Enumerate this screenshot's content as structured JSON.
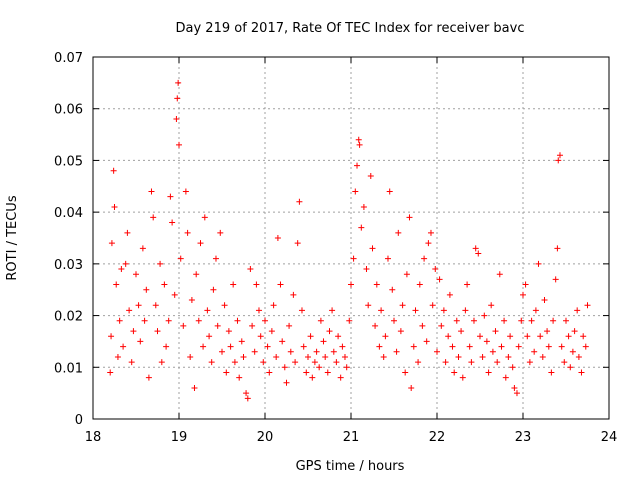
{
  "chart_data": {
    "type": "scatter",
    "title": "Day 219 of 2017, Rate Of TEC Index for receiver bavc",
    "xlabel": "GPS time / hours",
    "ylabel": "ROTI / TECUs",
    "xlim": [
      18,
      24
    ],
    "ylim": [
      0,
      0.07
    ],
    "x_ticks": [
      "18",
      "19",
      "20",
      "21",
      "22",
      "23",
      "24"
    ],
    "y_ticks": [
      "0",
      "0.01",
      "0.02",
      "0.03",
      "0.04",
      "0.05",
      "0.06",
      "0.07"
    ],
    "grid": true,
    "marker": "+",
    "color": "#ff0000",
    "series": [
      {
        "points": [
          [
            18.2,
            0.009
          ],
          [
            18.21,
            0.016
          ],
          [
            18.22,
            0.034
          ],
          [
            18.24,
            0.048
          ],
          [
            18.25,
            0.041
          ],
          [
            18.27,
            0.026
          ],
          [
            18.29,
            0.012
          ],
          [
            18.31,
            0.019
          ],
          [
            18.33,
            0.029
          ],
          [
            18.35,
            0.014
          ],
          [
            18.38,
            0.03
          ],
          [
            18.4,
            0.036
          ],
          [
            18.42,
            0.021
          ],
          [
            18.45,
            0.011
          ],
          [
            18.47,
            0.017
          ],
          [
            18.5,
            0.028
          ],
          [
            18.53,
            0.022
          ],
          [
            18.55,
            0.015
          ],
          [
            18.58,
            0.033
          ],
          [
            18.6,
            0.019
          ],
          [
            18.62,
            0.025
          ],
          [
            18.65,
            0.008
          ],
          [
            18.68,
            0.044
          ],
          [
            18.7,
            0.039
          ],
          [
            18.73,
            0.022
          ],
          [
            18.75,
            0.017
          ],
          [
            18.78,
            0.03
          ],
          [
            18.8,
            0.011
          ],
          [
            18.83,
            0.026
          ],
          [
            18.85,
            0.014
          ],
          [
            18.88,
            0.019
          ],
          [
            18.9,
            0.043
          ],
          [
            18.92,
            0.038
          ],
          [
            18.95,
            0.024
          ],
          [
            18.97,
            0.058
          ],
          [
            18.98,
            0.062
          ],
          [
            18.99,
            0.065
          ],
          [
            19.0,
            0.053
          ],
          [
            19.02,
            0.031
          ],
          [
            19.05,
            0.018
          ],
          [
            19.08,
            0.044
          ],
          [
            19.1,
            0.036
          ],
          [
            19.13,
            0.012
          ],
          [
            19.15,
            0.023
          ],
          [
            19.18,
            0.006
          ],
          [
            19.2,
            0.028
          ],
          [
            19.23,
            0.019
          ],
          [
            19.25,
            0.034
          ],
          [
            19.28,
            0.014
          ],
          [
            19.3,
            0.039
          ],
          [
            19.33,
            0.021
          ],
          [
            19.35,
            0.016
          ],
          [
            19.38,
            0.011
          ],
          [
            19.4,
            0.025
          ],
          [
            19.43,
            0.031
          ],
          [
            19.45,
            0.018
          ],
          [
            19.48,
            0.036
          ],
          [
            19.5,
            0.013
          ],
          [
            19.53,
            0.022
          ],
          [
            19.55,
            0.009
          ],
          [
            19.58,
            0.017
          ],
          [
            19.6,
            0.014
          ],
          [
            19.63,
            0.026
          ],
          [
            19.65,
            0.011
          ],
          [
            19.68,
            0.019
          ],
          [
            19.7,
            0.008
          ],
          [
            19.73,
            0.015
          ],
          [
            19.75,
            0.012
          ],
          [
            19.78,
            0.005
          ],
          [
            19.8,
            0.004
          ],
          [
            19.83,
            0.029
          ],
          [
            19.85,
            0.018
          ],
          [
            19.88,
            0.013
          ],
          [
            19.9,
            0.026
          ],
          [
            19.93,
            0.021
          ],
          [
            19.95,
            0.016
          ],
          [
            19.98,
            0.011
          ],
          [
            20.0,
            0.019
          ],
          [
            20.03,
            0.014
          ],
          [
            20.05,
            0.009
          ],
          [
            20.08,
            0.017
          ],
          [
            20.1,
            0.022
          ],
          [
            20.13,
            0.012
          ],
          [
            20.15,
            0.035
          ],
          [
            20.18,
            0.026
          ],
          [
            20.2,
            0.015
          ],
          [
            20.23,
            0.01
          ],
          [
            20.25,
            0.007
          ],
          [
            20.28,
            0.018
          ],
          [
            20.3,
            0.013
          ],
          [
            20.33,
            0.024
          ],
          [
            20.35,
            0.011
          ],
          [
            20.38,
            0.034
          ],
          [
            20.4,
            0.042
          ],
          [
            20.43,
            0.021
          ],
          [
            20.45,
            0.014
          ],
          [
            20.48,
            0.009
          ],
          [
            20.5,
            0.012
          ],
          [
            20.53,
            0.016
          ],
          [
            20.55,
            0.008
          ],
          [
            20.58,
            0.011
          ],
          [
            20.6,
            0.013
          ],
          [
            20.63,
            0.01
          ],
          [
            20.65,
            0.019
          ],
          [
            20.68,
            0.015
          ],
          [
            20.7,
            0.012
          ],
          [
            20.73,
            0.009
          ],
          [
            20.75,
            0.017
          ],
          [
            20.78,
            0.021
          ],
          [
            20.8,
            0.013
          ],
          [
            20.83,
            0.011
          ],
          [
            20.85,
            0.016
          ],
          [
            20.88,
            0.008
          ],
          [
            20.9,
            0.014
          ],
          [
            20.93,
            0.012
          ],
          [
            20.95,
            0.01
          ],
          [
            20.98,
            0.019
          ],
          [
            21.0,
            0.026
          ],
          [
            21.03,
            0.031
          ],
          [
            21.05,
            0.044
          ],
          [
            21.07,
            0.049
          ],
          [
            21.09,
            0.054
          ],
          [
            21.1,
            0.053
          ],
          [
            21.12,
            0.037
          ],
          [
            21.15,
            0.041
          ],
          [
            21.18,
            0.029
          ],
          [
            21.2,
            0.022
          ],
          [
            21.23,
            0.047
          ],
          [
            21.25,
            0.033
          ],
          [
            21.28,
            0.018
          ],
          [
            21.3,
            0.026
          ],
          [
            21.33,
            0.014
          ],
          [
            21.35,
            0.021
          ],
          [
            21.38,
            0.012
          ],
          [
            21.4,
            0.016
          ],
          [
            21.43,
            0.031
          ],
          [
            21.45,
            0.044
          ],
          [
            21.48,
            0.025
          ],
          [
            21.5,
            0.019
          ],
          [
            21.53,
            0.013
          ],
          [
            21.55,
            0.036
          ],
          [
            21.58,
            0.017
          ],
          [
            21.6,
            0.022
          ],
          [
            21.63,
            0.009
          ],
          [
            21.65,
            0.028
          ],
          [
            21.68,
            0.039
          ],
          [
            21.7,
            0.006
          ],
          [
            21.73,
            0.014
          ],
          [
            21.75,
            0.021
          ],
          [
            21.78,
            0.011
          ],
          [
            21.8,
            0.026
          ],
          [
            21.83,
            0.018
          ],
          [
            21.85,
            0.031
          ],
          [
            21.88,
            0.015
          ],
          [
            21.9,
            0.034
          ],
          [
            21.93,
            0.036
          ],
          [
            21.95,
            0.022
          ],
          [
            21.98,
            0.029
          ],
          [
            22.0,
            0.013
          ],
          [
            22.03,
            0.027
          ],
          [
            22.05,
            0.018
          ],
          [
            22.08,
            0.021
          ],
          [
            22.1,
            0.011
          ],
          [
            22.13,
            0.016
          ],
          [
            22.15,
            0.024
          ],
          [
            22.18,
            0.014
          ],
          [
            22.2,
            0.009
          ],
          [
            22.23,
            0.019
          ],
          [
            22.25,
            0.012
          ],
          [
            22.28,
            0.017
          ],
          [
            22.3,
            0.008
          ],
          [
            22.33,
            0.021
          ],
          [
            22.35,
            0.026
          ],
          [
            22.38,
            0.014
          ],
          [
            22.4,
            0.011
          ],
          [
            22.43,
            0.019
          ],
          [
            22.45,
            0.033
          ],
          [
            22.48,
            0.032
          ],
          [
            22.5,
            0.016
          ],
          [
            22.53,
            0.012
          ],
          [
            22.55,
            0.02
          ],
          [
            22.58,
            0.015
          ],
          [
            22.6,
            0.009
          ],
          [
            22.63,
            0.022
          ],
          [
            22.65,
            0.013
          ],
          [
            22.68,
            0.017
          ],
          [
            22.7,
            0.011
          ],
          [
            22.73,
            0.028
          ],
          [
            22.75,
            0.014
          ],
          [
            22.78,
            0.019
          ],
          [
            22.8,
            0.008
          ],
          [
            22.83,
            0.012
          ],
          [
            22.85,
            0.016
          ],
          [
            22.88,
            0.01
          ],
          [
            22.9,
            0.006
          ],
          [
            22.93,
            0.005
          ],
          [
            22.95,
            0.014
          ],
          [
            22.98,
            0.019
          ],
          [
            23.0,
            0.024
          ],
          [
            23.03,
            0.026
          ],
          [
            23.05,
            0.016
          ],
          [
            23.08,
            0.011
          ],
          [
            23.1,
            0.019
          ],
          [
            23.13,
            0.013
          ],
          [
            23.15,
            0.021
          ],
          [
            23.18,
            0.03
          ],
          [
            23.2,
            0.016
          ],
          [
            23.23,
            0.012
          ],
          [
            23.25,
            0.023
          ],
          [
            23.28,
            0.017
          ],
          [
            23.3,
            0.014
          ],
          [
            23.33,
            0.009
          ],
          [
            23.35,
            0.019
          ],
          [
            23.38,
            0.027
          ],
          [
            23.4,
            0.033
          ],
          [
            23.41,
            0.05
          ],
          [
            23.43,
            0.051
          ],
          [
            23.45,
            0.014
          ],
          [
            23.48,
            0.011
          ],
          [
            23.5,
            0.019
          ],
          [
            23.53,
            0.016
          ],
          [
            23.55,
            0.01
          ],
          [
            23.58,
            0.013
          ],
          [
            23.6,
            0.017
          ],
          [
            23.63,
            0.021
          ],
          [
            23.65,
            0.012
          ],
          [
            23.68,
            0.009
          ],
          [
            23.7,
            0.016
          ],
          [
            23.73,
            0.014
          ],
          [
            23.75,
            0.022
          ]
        ]
      }
    ]
  }
}
